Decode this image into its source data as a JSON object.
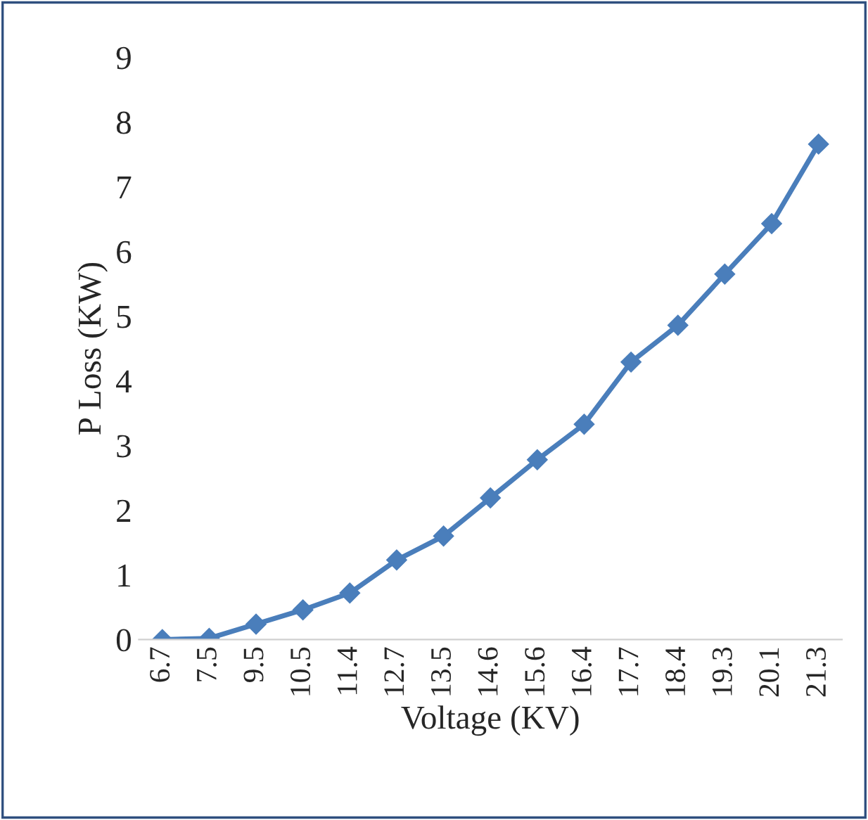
{
  "chart_data": {
    "type": "line",
    "xlabel": "Voltage (KV)",
    "ylabel": "P Loss (KW)",
    "categories": [
      "6.7",
      "7.5",
      "9.5",
      "10.5",
      "11.4",
      "12.7",
      "13.5",
      "14.6",
      "15.6",
      "16.4",
      "17.7",
      "18.4",
      "19.3",
      "20.1",
      "21.3"
    ],
    "series": [
      {
        "color": "#4a7ebb",
        "values": [
          0,
          0.02,
          0.24,
          0.46,
          0.72,
          1.23,
          1.6,
          2.19,
          2.78,
          3.33,
          4.29,
          4.86,
          5.65,
          6.43,
          7.66
        ]
      }
    ],
    "ylim": [
      0,
      9
    ],
    "yticks": [
      0,
      1,
      2,
      3,
      4,
      5,
      6,
      7,
      8,
      9
    ],
    "grid": false,
    "legend": false,
    "marker": "diamond",
    "line_style": "solid"
  }
}
